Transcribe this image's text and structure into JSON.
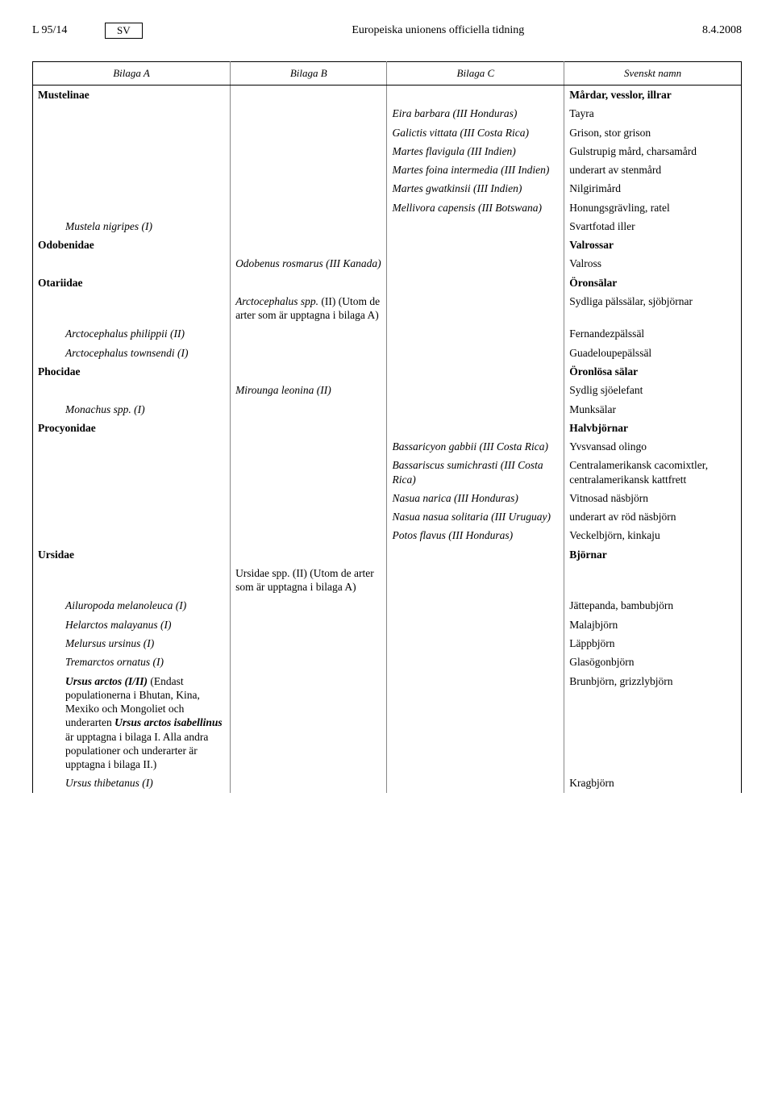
{
  "header": {
    "page_left": "L 95/14",
    "lang": "SV",
    "journal": "Europeiska unionens officiella tidning",
    "date": "8.4.2008"
  },
  "columns": {
    "a": "Bilaga A",
    "b": "Bilaga B",
    "c": "Bilaga C",
    "d": "Svenskt namn"
  },
  "mustelinae": {
    "name": "Mustelinae",
    "sv": "Mårdar, vesslor, illrar",
    "eira_c": "Eira barbara (III Honduras)",
    "eira_d": "Tayra",
    "galictis_c": "Galictis vittata (III Costa Rica)",
    "galictis_d": "Grison, stor grison",
    "flavigula_c": "Martes flavigula (III Indien)",
    "flavigula_d": "Gulstrupig mård, charsamård",
    "foina_c": "Martes foina intermedia (III Indien)",
    "foina_d": "underart av stenmård",
    "gwatkinsii_c": "Martes gwatkinsii (III Indien)",
    "gwatkinsii_d": "Nilgirimård",
    "mellivora_c": "Mellivora capensis (III Botswana)",
    "mellivora_d": "Honungsgrävling, ratel",
    "mustela_a": "Mustela nigripes (I)",
    "mustela_d": "Svartfotad iller"
  },
  "odobenidae": {
    "name": "Odobenidae",
    "sv": "Valrossar",
    "rosmarus_b": "Odobenus rosmarus (III Kanada)",
    "rosmarus_d": "Valross"
  },
  "otariidae": {
    "name": "Otariidae",
    "sv": "Öronsälar",
    "arcto_b_i": "Arctocephalus spp. ",
    "arcto_b_r": "(II) (Utom de arter som är upptagna i bilaga A)",
    "arcto_d": "Sydliga pälssälar, sjöbjörnar",
    "philippii_a": "Arctocephalus philippii (II)",
    "philippii_d": "Fernandezpälssäl",
    "townsendi_a": "Arctocephalus townsendi (I)",
    "townsendi_d": "Guadeloupepälssäl"
  },
  "phocidae": {
    "name": "Phocidae",
    "sv": "Öronlösa sälar",
    "mirounga_b": "Mirounga leonina (II)",
    "mirounga_d": "Sydlig sjöelefant",
    "monachus_a": "Monachus spp. (I)",
    "monachus_d": "Munksälar"
  },
  "procyonidae": {
    "name": "Procyonidae",
    "sv": "Halvbjörnar",
    "bassaricyon_c": "Bassaricyon gabbii (III Costa Rica)",
    "bassaricyon_d": "Yvsvansad olingo",
    "bassariscus_c": "Bassariscus sumichrasti (III Costa Rica)",
    "bassariscus_d": "Centralamerikansk cacomixtler, centralamerikansk kattfrett",
    "narica_c": "Nasua narica (III Honduras)",
    "narica_d": "Vitnosad näsbjörn",
    "solitaria_c": "Nasua nasua solitaria (III Uruguay)",
    "solitaria_d": "underart av röd näsbjörn",
    "potos_c": "Potos flavus (III Honduras)",
    "potos_d": "Veckelbjörn, kinkaju"
  },
  "ursidae": {
    "name": "Ursidae",
    "sv": "Björnar",
    "spp_b_r": "Ursidae spp. (II) (Utom de arter som är upptagna i bilaga A)",
    "ailuropoda_a": "Ailuropoda melanoleuca (I)",
    "ailuropoda_d": "Jättepanda, bambubjörn",
    "helarctos_a": "Helarctos malayanus (I)",
    "helarctos_d": "Malajbjörn",
    "melursus_a": "Melursus ursinus (I)",
    "melursus_d": "Läppbjörn",
    "tremarctos_a": "Tremarctos ornatus (I)",
    "tremarctos_d": "Glasögonbjörn",
    "arctos_a_b": "Ursus arctos (I/II)",
    "arctos_a_r1": " (Endast populationerna i Bhutan, Kina, Mexiko och Mongoliet och underarten ",
    "arctos_a_b2": "Ursus arctos isabellinus",
    "arctos_a_r2": " är upptagna i bilaga I. Alla andra populationer och underarter är upptagna i bilaga II.)",
    "arctos_d": "Brunbjörn, grizzlybjörn",
    "thibetanus_a": "Ursus thibetanus (I)",
    "thibetanus_d": "Kragbjörn"
  }
}
